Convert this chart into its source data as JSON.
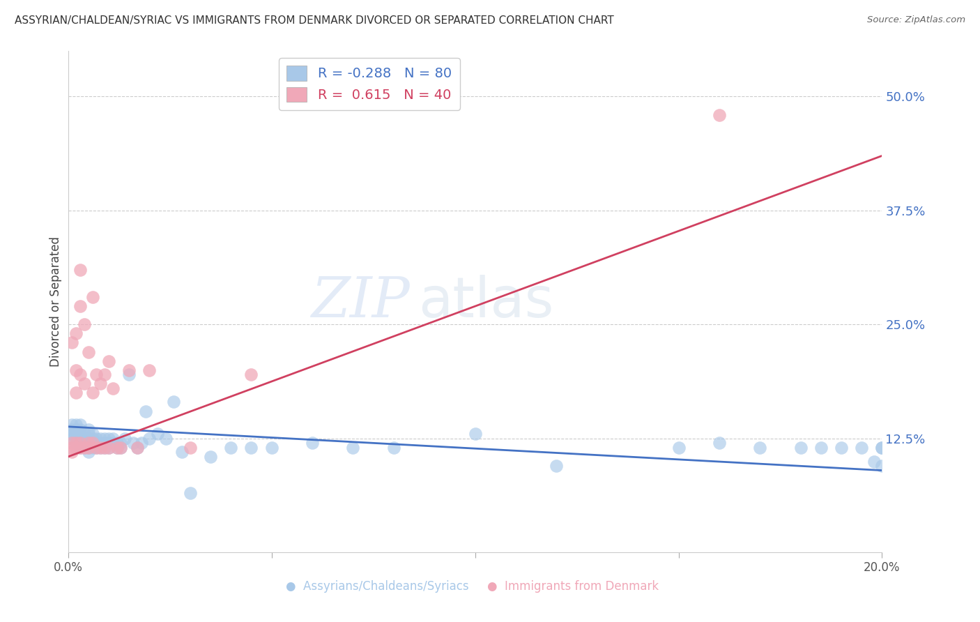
{
  "title": "ASSYRIAN/CHALDEAN/SYRIAC VS IMMIGRANTS FROM DENMARK DIVORCED OR SEPARATED CORRELATION CHART",
  "source": "Source: ZipAtlas.com",
  "xlabel_blue": "Assyrians/Chaldeans/Syriacs",
  "xlabel_pink": "Immigrants from Denmark",
  "ylabel": "Divorced or Separated",
  "xlim": [
    0.0,
    0.2
  ],
  "ylim": [
    0.0,
    0.55
  ],
  "ytick_labels_right": [
    "12.5%",
    "25.0%",
    "37.5%",
    "50.0%"
  ],
  "ytick_values_right": [
    0.125,
    0.25,
    0.375,
    0.5
  ],
  "R_blue": -0.288,
  "N_blue": 80,
  "R_pink": 0.615,
  "N_pink": 40,
  "blue_color": "#a8c8e8",
  "pink_color": "#f0a8b8",
  "blue_line_color": "#4472c4",
  "pink_line_color": "#d04060",
  "watermark_zip": "ZIP",
  "watermark_atlas": "atlas",
  "blue_scatter_x": [
    0.0005,
    0.001,
    0.001,
    0.001,
    0.001,
    0.002,
    0.002,
    0.002,
    0.002,
    0.002,
    0.003,
    0.003,
    0.003,
    0.003,
    0.003,
    0.003,
    0.004,
    0.004,
    0.004,
    0.004,
    0.005,
    0.005,
    0.005,
    0.005,
    0.005,
    0.005,
    0.006,
    0.006,
    0.006,
    0.006,
    0.007,
    0.007,
    0.007,
    0.008,
    0.008,
    0.008,
    0.009,
    0.009,
    0.009,
    0.01,
    0.01,
    0.01,
    0.011,
    0.011,
    0.012,
    0.012,
    0.013,
    0.013,
    0.014,
    0.015,
    0.016,
    0.017,
    0.018,
    0.019,
    0.02,
    0.022,
    0.024,
    0.026,
    0.028,
    0.03,
    0.035,
    0.04,
    0.045,
    0.05,
    0.06,
    0.07,
    0.08,
    0.1,
    0.12,
    0.15,
    0.16,
    0.17,
    0.18,
    0.185,
    0.19,
    0.195,
    0.198,
    0.2,
    0.2,
    0.2
  ],
  "blue_scatter_y": [
    0.13,
    0.125,
    0.13,
    0.135,
    0.14,
    0.12,
    0.125,
    0.13,
    0.135,
    0.14,
    0.115,
    0.12,
    0.125,
    0.13,
    0.135,
    0.14,
    0.115,
    0.12,
    0.125,
    0.13,
    0.11,
    0.115,
    0.12,
    0.125,
    0.13,
    0.135,
    0.115,
    0.12,
    0.125,
    0.13,
    0.115,
    0.12,
    0.125,
    0.115,
    0.12,
    0.125,
    0.115,
    0.12,
    0.125,
    0.115,
    0.12,
    0.125,
    0.12,
    0.125,
    0.115,
    0.12,
    0.115,
    0.12,
    0.125,
    0.195,
    0.12,
    0.115,
    0.12,
    0.155,
    0.125,
    0.13,
    0.125,
    0.165,
    0.11,
    0.065,
    0.105,
    0.115,
    0.115,
    0.115,
    0.12,
    0.115,
    0.115,
    0.13,
    0.095,
    0.115,
    0.12,
    0.115,
    0.115,
    0.115,
    0.115,
    0.115,
    0.1,
    0.095,
    0.115,
    0.115
  ],
  "pink_scatter_x": [
    0.001,
    0.001,
    0.001,
    0.001,
    0.002,
    0.002,
    0.002,
    0.002,
    0.002,
    0.003,
    0.003,
    0.003,
    0.003,
    0.003,
    0.004,
    0.004,
    0.004,
    0.005,
    0.005,
    0.005,
    0.006,
    0.006,
    0.006,
    0.007,
    0.007,
    0.008,
    0.008,
    0.009,
    0.009,
    0.01,
    0.01,
    0.011,
    0.012,
    0.013,
    0.015,
    0.017,
    0.02,
    0.03,
    0.045,
    0.16
  ],
  "pink_scatter_y": [
    0.11,
    0.115,
    0.12,
    0.23,
    0.115,
    0.12,
    0.175,
    0.2,
    0.24,
    0.115,
    0.12,
    0.195,
    0.27,
    0.31,
    0.115,
    0.185,
    0.25,
    0.115,
    0.12,
    0.22,
    0.12,
    0.175,
    0.28,
    0.115,
    0.195,
    0.115,
    0.185,
    0.115,
    0.195,
    0.115,
    0.21,
    0.18,
    0.115,
    0.115,
    0.2,
    0.115,
    0.2,
    0.115,
    0.195,
    0.48
  ],
  "blue_trendline_x": [
    0.0,
    0.2
  ],
  "blue_trendline_y": [
    0.138,
    0.09
  ],
  "pink_trendline_x": [
    0.0,
    0.2
  ],
  "pink_trendline_y": [
    0.105,
    0.435
  ]
}
